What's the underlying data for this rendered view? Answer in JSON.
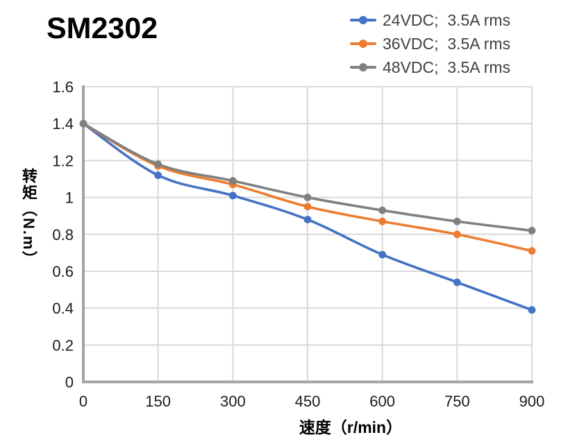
{
  "title": "SM2302",
  "colors": {
    "series_blue": "#4472C4",
    "series_orange": "#ED7D31",
    "series_gray": "#808080",
    "gridline": "#D9D9D9",
    "axis_line": "#A3A3A3",
    "tick_text": "#1A1A1A",
    "legend_text": "#404040",
    "title_text": "#000000",
    "background": "#FFFFFF"
  },
  "legend": {
    "position": "top-right",
    "items": [
      {
        "label": "24VDC;  3.5A rms",
        "color": "#4472C4"
      },
      {
        "label": "36VDC;  3.5A rms",
        "color": "#ED7D31"
      },
      {
        "label": "48VDC;  3.5A rms",
        "color": "#808080"
      }
    ]
  },
  "axes": {
    "x": {
      "title": "速度（r/min）",
      "tick_labels": [
        "0",
        "150",
        "300",
        "450",
        "600",
        "750",
        "900"
      ]
    },
    "y": {
      "title": "转矩（N.m）",
      "tick_labels": [
        "0",
        "0.2",
        "0.4",
        "0.6",
        "0.8",
        "1",
        "1.2",
        "1.4",
        "1.6"
      ]
    }
  },
  "chart_data": {
    "type": "line",
    "title": "SM2302",
    "xlabel": "速度（r/min）",
    "ylabel": "转矩（N.m）",
    "x": [
      0,
      150,
      300,
      450,
      600,
      750,
      900
    ],
    "series": [
      {
        "name": "24VDC;  3.5A rms",
        "color": "#4472C4",
        "values": [
          1.4,
          1.12,
          1.01,
          0.88,
          0.69,
          0.54,
          0.39
        ]
      },
      {
        "name": "36VDC;  3.5A rms",
        "color": "#ED7D31",
        "values": [
          1.4,
          1.17,
          1.07,
          0.95,
          0.87,
          0.8,
          0.71
        ]
      },
      {
        "name": "48VDC;  3.5A rms",
        "color": "#808080",
        "values": [
          1.4,
          1.18,
          1.09,
          1.0,
          0.93,
          0.87,
          0.82
        ]
      }
    ],
    "xlim": [
      0,
      900
    ],
    "ylim": [
      0,
      1.6
    ],
    "x_ticks": [
      0,
      150,
      300,
      450,
      600,
      750,
      900
    ],
    "y_ticks": [
      0,
      0.2,
      0.4,
      0.6,
      0.8,
      1,
      1.2,
      1.4,
      1.6
    ],
    "grid": true,
    "smooth_lines": true,
    "marker": "circle",
    "legend_position": "top-right"
  }
}
